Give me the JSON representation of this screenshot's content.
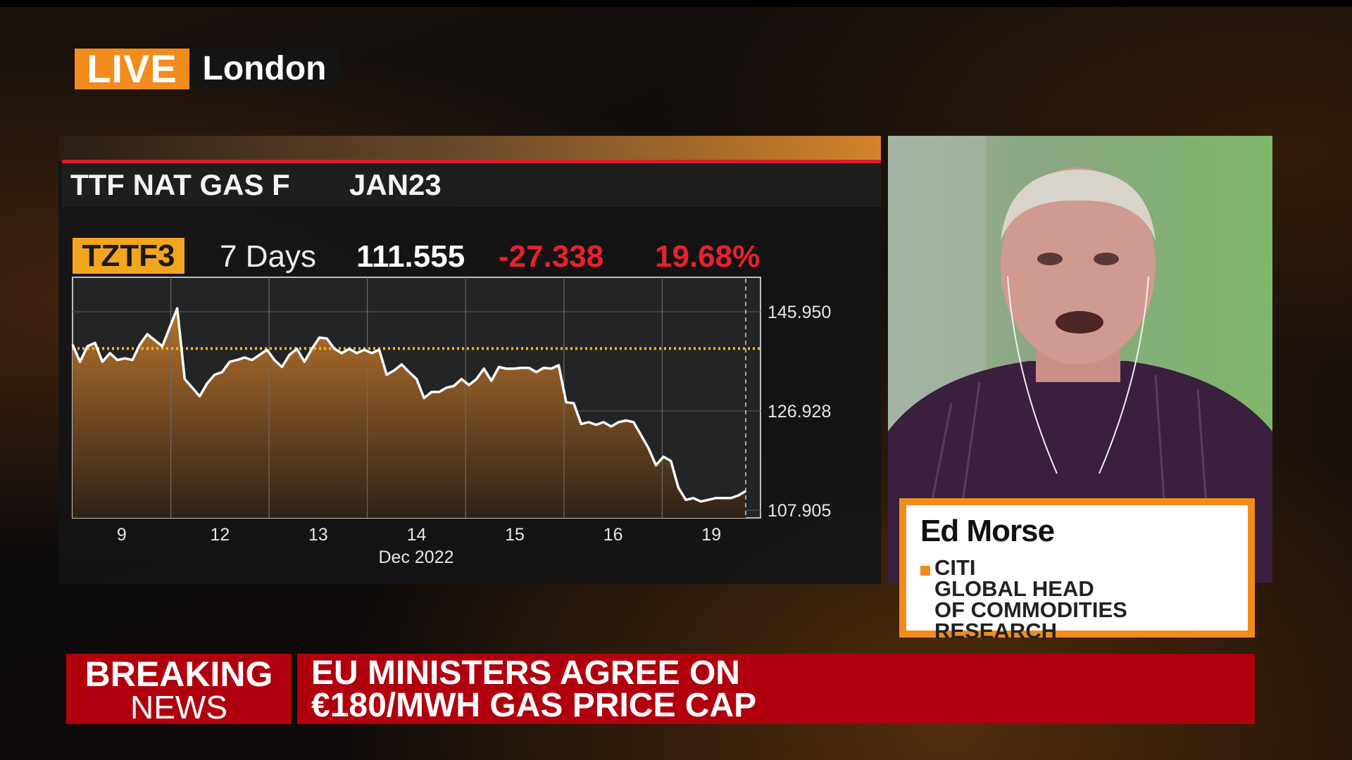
{
  "live_badge": {
    "label": "LIVE",
    "location": "London"
  },
  "chart_header": {
    "instrument": "TTF NAT GAS F",
    "contract": "JAN23"
  },
  "stats": {
    "ticker": "TZTF3",
    "period": "7 Days",
    "last": "111.555",
    "change": "-27.338",
    "change_pct": "19.68%"
  },
  "colors": {
    "accent_orange": "#f28c1c",
    "ticker_bg": "#f2a51f",
    "negative_red": "#e8212e",
    "breaking_red": "#b0000e",
    "reference_line": "#f2b51f"
  },
  "chart_data": {
    "type": "area",
    "xlabel": "Dec 2022",
    "x_tick_labels": [
      "9",
      "12",
      "13",
      "14",
      "15",
      "16",
      "19"
    ],
    "y_tick_labels": [
      "145.950",
      "126.928",
      "107.905"
    ],
    "y_ticks": [
      145.95,
      126.928,
      107.905
    ],
    "ylim": [
      106.42,
      152.56
    ],
    "reference_line": 138.893,
    "grid": true,
    "values": [
      139.66,
      136.36,
      139.33,
      139.99,
      136.36,
      138.01,
      136.69,
      137.02,
      136.69,
      139.66,
      141.65,
      140.49,
      139.33,
      142.97,
      146.61,
      133.05,
      131.39,
      129.74,
      132.22,
      133.88,
      134.37,
      136.36,
      136.69,
      137.18,
      136.69,
      137.68,
      138.67,
      136.69,
      135.36,
      137.68,
      138.84,
      136.36,
      138.84,
      140.99,
      140.82,
      138.84,
      138.01,
      138.84,
      138.01,
      138.67,
      138.01,
      138.67,
      133.88,
      134.7,
      135.86,
      134.37,
      133.05,
      129.41,
      130.57,
      130.57,
      131.39,
      131.73,
      133.05,
      131.89,
      133.05,
      135.03,
      132.72,
      135.36,
      135.03,
      135.03,
      135.2,
      135.2,
      134.37,
      135.2,
      135.03,
      135.69,
      128.58,
      128.42,
      124.45,
      124.78,
      124.28,
      124.78,
      123.95,
      124.78,
      125.11,
      124.78,
      122.3,
      119.82,
      116.51,
      118.16,
      117.34,
      112.21,
      109.89,
      110.22,
      109.56,
      109.89,
      110.22,
      110.22,
      110.22,
      110.72,
      111.56
    ]
  },
  "guest": {
    "name": "Ed Morse",
    "org": "CITI",
    "title_line1": "GLOBAL HEAD",
    "title_line2": "OF COMMODITIES RESEARCH"
  },
  "breaking": {
    "line1": "BREAKING",
    "line2": "NEWS",
    "headline1": "EU MINISTERS AGREE ON",
    "headline2": "€180/MWH GAS PRICE CAP"
  }
}
